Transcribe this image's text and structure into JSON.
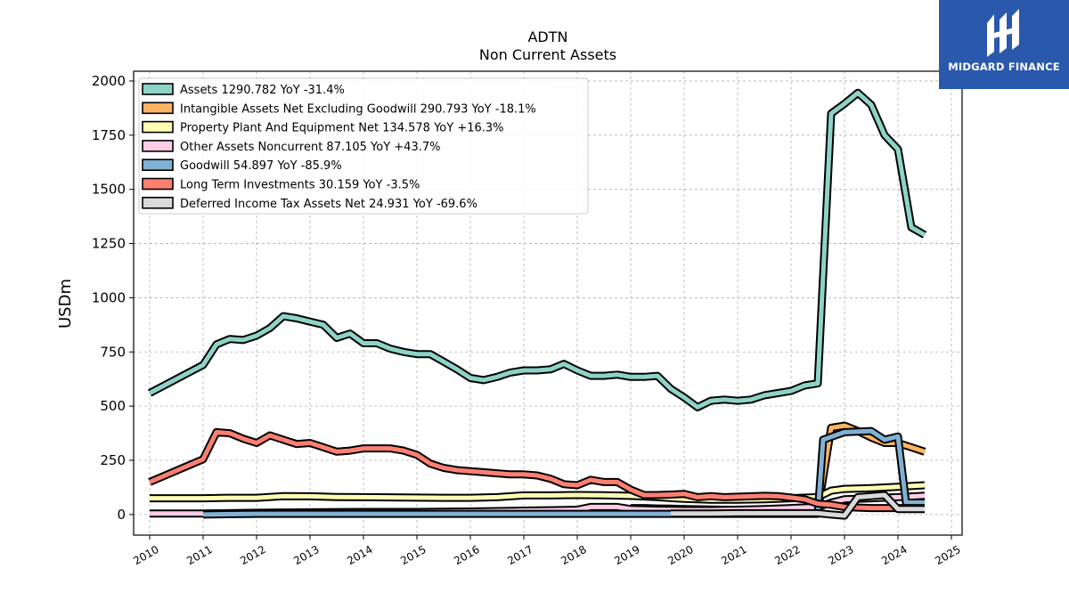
{
  "chart_data": {
    "type": "line",
    "title": "ADTN",
    "subtitle": "Non Current  Assets",
    "ylabel": "USDm",
    "xlabel": "",
    "xlim": [
      2009.7,
      2025.2
    ],
    "ylim": [
      -95,
      2045
    ],
    "yticks": [
      0,
      250,
      500,
      750,
      1000,
      1250,
      1500,
      1750,
      2000
    ],
    "xticks": [
      2010,
      2011,
      2012,
      2013,
      2014,
      2015,
      2016,
      2017,
      2018,
      2019,
      2020,
      2021,
      2022,
      2023,
      2024,
      2025
    ],
    "grid": true,
    "legend_position": "top-left",
    "series": [
      {
        "name": "Assets  1290.782 YoY -31.4%",
        "color": "#8dd3c7",
        "x": [
          2010.0,
          2011.0,
          2011.25,
          2011.5,
          2011.75,
          2012.0,
          2012.25,
          2012.5,
          2012.75,
          2013.0,
          2013.25,
          2013.5,
          2013.75,
          2014.0,
          2014.25,
          2014.5,
          2014.75,
          2015.0,
          2015.25,
          2015.5,
          2015.75,
          2016.0,
          2016.25,
          2016.5,
          2016.75,
          2017.0,
          2017.25,
          2017.5,
          2017.75,
          2018.0,
          2018.25,
          2018.5,
          2018.75,
          2019.0,
          2019.25,
          2019.5,
          2019.75,
          2020.0,
          2020.25,
          2020.5,
          2020.75,
          2021.0,
          2021.25,
          2021.5,
          2021.75,
          2022.0,
          2022.25,
          2022.5,
          2022.75,
          2023.0,
          2023.25,
          2023.5,
          2023.75,
          2024.0,
          2024.25,
          2024.5
        ],
        "y": [
          560,
          690,
          785,
          810,
          805,
          825,
          860,
          915,
          905,
          890,
          875,
          815,
          835,
          790,
          790,
          765,
          750,
          740,
          740,
          705,
          670,
          630,
          620,
          635,
          655,
          665,
          665,
          670,
          695,
          665,
          640,
          640,
          645,
          635,
          635,
          640,
          580,
          540,
          495,
          525,
          530,
          525,
          530,
          550,
          560,
          570,
          595,
          605,
          1850,
          1895,
          1945,
          1890,
          1750,
          1685,
          1325,
          1290
        ]
      },
      {
        "name": "Intangible Assets Net Excluding Goodwill  290.793 YoY -18.1%",
        "color": "#fdb462",
        "x": [
          2019.0,
          2019.25,
          2019.5,
          2019.75,
          2020.0,
          2020.25,
          2020.5,
          2020.75,
          2021.0,
          2021.25,
          2021.5,
          2021.75,
          2022.0,
          2022.25,
          2022.5,
          2022.75,
          2023.0,
          2023.25,
          2023.5,
          2023.75,
          2024.0,
          2024.25,
          2024.5
        ],
        "y": [
          30,
          30,
          28,
          27,
          25,
          24,
          23,
          22,
          21,
          20,
          20,
          19,
          18,
          17,
          16,
          400,
          410,
          385,
          355,
          330,
          330,
          310,
          290
        ]
      },
      {
        "name": "Property Plant And Equipment Net  134.578 YoY +16.3%",
        "color": "#ffffb3",
        "x": [
          2010.0,
          2011.0,
          2011.5,
          2012.0,
          2012.5,
          2013.0,
          2013.5,
          2014.0,
          2014.5,
          2015.0,
          2015.5,
          2016.0,
          2016.5,
          2017.0,
          2017.5,
          2018.0,
          2018.5,
          2019.0,
          2019.5,
          2020.0,
          2020.5,
          2021.0,
          2021.5,
          2022.0,
          2022.5,
          2022.75,
          2023.0,
          2023.5,
          2024.0,
          2024.5
        ],
        "y": [
          75,
          75,
          77,
          77,
          85,
          84,
          81,
          80,
          79,
          78,
          77,
          77,
          80,
          88,
          88,
          90,
          89,
          86,
          80,
          72,
          68,
          68,
          70,
          75,
          80,
          110,
          118,
          122,
          128,
          135
        ]
      },
      {
        "name": "Other Assets Noncurrent  87.105 YoY +43.7%",
        "color": "#fccde5",
        "x": [
          2010.0,
          2011.0,
          2012.0,
          2013.0,
          2014.0,
          2015.0,
          2016.0,
          2017.0,
          2018.0,
          2018.25,
          2018.75,
          2019.0,
          2019.5,
          2020.0,
          2020.5,
          2021.0,
          2021.5,
          2022.0,
          2022.5,
          2022.75,
          2023.0,
          2023.5,
          2024.0,
          2024.5
        ],
        "y": [
          5,
          5,
          8,
          10,
          12,
          12,
          14,
          18,
          22,
          35,
          35,
          25,
          22,
          20,
          20,
          22,
          25,
          30,
          35,
          55,
          70,
          75,
          80,
          87
        ]
      },
      {
        "name": "Goodwill  54.897 YoY -85.9%",
        "color": "#80b1d3",
        "x": [
          2011.0,
          2012.0,
          2013.0,
          2014.0,
          2015.0,
          2016.0,
          2017.0,
          2018.0,
          2019.0,
          2020.0,
          2021.0,
          2022.0,
          2022.5,
          2022.6,
          2023.0,
          2023.5,
          2023.75,
          2024.0,
          2024.15,
          2024.5
        ],
        "y": [
          0,
          3,
          3,
          3,
          3,
          3,
          3,
          3,
          3,
          3,
          3,
          3,
          3,
          345,
          380,
          385,
          345,
          360,
          55,
          55
        ]
      },
      {
        "name": "Long Term Investments  30.159 YoY -3.5%",
        "color": "#fb8072",
        "x": [
          2010.0,
          2011.0,
          2011.25,
          2011.5,
          2011.75,
          2012.0,
          2012.25,
          2012.5,
          2012.75,
          2013.0,
          2013.25,
          2013.5,
          2013.75,
          2014.0,
          2014.25,
          2014.5,
          2014.75,
          2015.0,
          2015.25,
          2015.5,
          2015.75,
          2016.0,
          2016.25,
          2016.5,
          2016.75,
          2017.0,
          2017.25,
          2017.5,
          2017.75,
          2018.0,
          2018.25,
          2018.5,
          2018.75,
          2019.0,
          2019.25,
          2019.5,
          2019.75,
          2020.0,
          2020.25,
          2020.5,
          2020.75,
          2021.0,
          2021.25,
          2021.5,
          2021.75,
          2022.0,
          2022.25,
          2022.5,
          2022.75,
          2023.0,
          2023.25,
          2023.5,
          2023.75,
          2024.0,
          2024.25,
          2024.5
        ],
        "y": [
          150,
          255,
          380,
          375,
          350,
          330,
          365,
          345,
          325,
          330,
          310,
          290,
          295,
          305,
          305,
          305,
          295,
          275,
          235,
          215,
          205,
          200,
          195,
          190,
          185,
          185,
          180,
          165,
          140,
          135,
          160,
          150,
          150,
          115,
          90,
          90,
          92,
          95,
          80,
          85,
          80,
          82,
          84,
          86,
          85,
          78,
          70,
          50,
          45,
          35,
          32,
          30,
          30,
          30,
          30,
          30
        ]
      },
      {
        "name": "Deferred Income Tax Assets Net  24.931 YoY -69.6%",
        "color": "#d9d9d9",
        "x": [
          2019.75,
          2020.0,
          2020.5,
          2021.0,
          2021.5,
          2022.0,
          2022.5,
          2022.75,
          2023.0,
          2023.25,
          2023.5,
          2023.75,
          2024.0,
          2024.5
        ],
        "y": [
          5,
          5,
          5,
          6,
          6,
          6,
          6,
          0,
          -5,
          80,
          85,
          90,
          25,
          25
        ]
      }
    ]
  },
  "logo": {
    "text": "MIDGARD FINANCE"
  }
}
